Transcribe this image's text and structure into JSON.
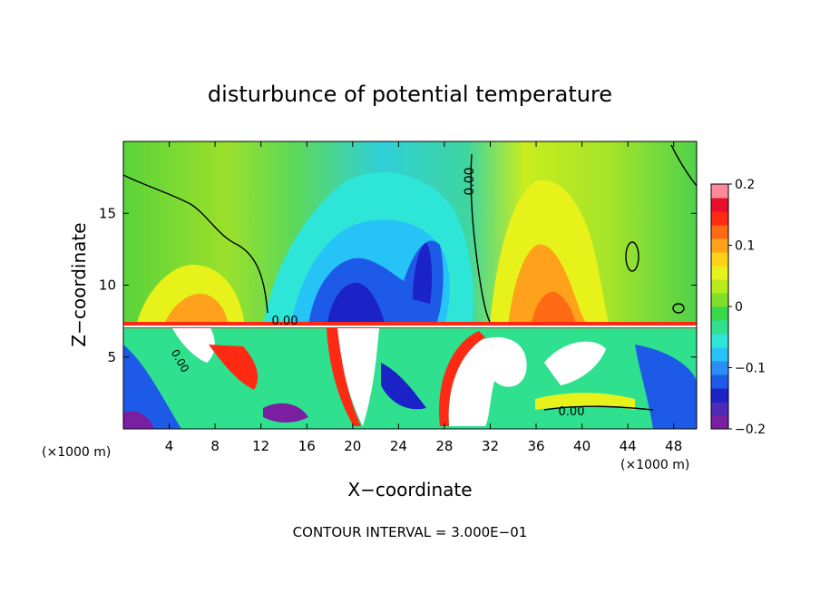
{
  "chart_data": {
    "type": "heatmap",
    "title": "disturbunce of potential temperature",
    "xlabel": "X−coordinate",
    "ylabel": "Z−coordinate",
    "x_unit_label": "(×1000 m)",
    "y_unit_label": "(×1000 m)",
    "xlim": [
      0,
      50
    ],
    "ylim": [
      0,
      20
    ],
    "x_ticks": [
      4,
      8,
      12,
      16,
      20,
      24,
      28,
      32,
      36,
      40,
      44,
      48
    ],
    "y_ticks": [
      5,
      10,
      15
    ],
    "colorbar": {
      "min": -0.2,
      "max": 0.2,
      "ticks": [
        0.2,
        0.1,
        0,
        -0.1,
        -0.2
      ],
      "tick_labels": [
        "0.2",
        "0.1",
        "0",
        "−0.1",
        "−0.2"
      ],
      "colors": [
        "#7a1fa2",
        "#4b2bb8",
        "#1a22c8",
        "#1e5ae8",
        "#2a8ff5",
        "#26c3f7",
        "#2ee6d8",
        "#2fe08f",
        "#38d84a",
        "#7fe02a",
        "#b6ec1e",
        "#e6f21a",
        "#ffd21a",
        "#ffa11a",
        "#ff6a14",
        "#ff2a14",
        "#e80f2a",
        "#ff8a9a"
      ]
    },
    "contour_interval_text": "CONTOUR INTERVAL = 3.000E−01",
    "contour_labels": [
      "0.00",
      "0.00",
      "0.00",
      "0.00"
    ],
    "field_summary": {
      "upper_layer_z_range": [
        7.2,
        20
      ],
      "lower_layer_z_range": [
        0,
        7.2
      ],
      "features": [
        {
          "kind": "negative",
          "x_center": 22,
          "z_center": 12,
          "value": -0.17
        },
        {
          "kind": "negative",
          "x_center": 26,
          "z_center": 13,
          "value": -0.15
        },
        {
          "kind": "positive",
          "x_center": 37,
          "z_center": 12,
          "value": 0.11
        },
        {
          "kind": "positive",
          "x_center": 6,
          "z_center": 10,
          "value": 0.07
        }
      ]
    }
  }
}
